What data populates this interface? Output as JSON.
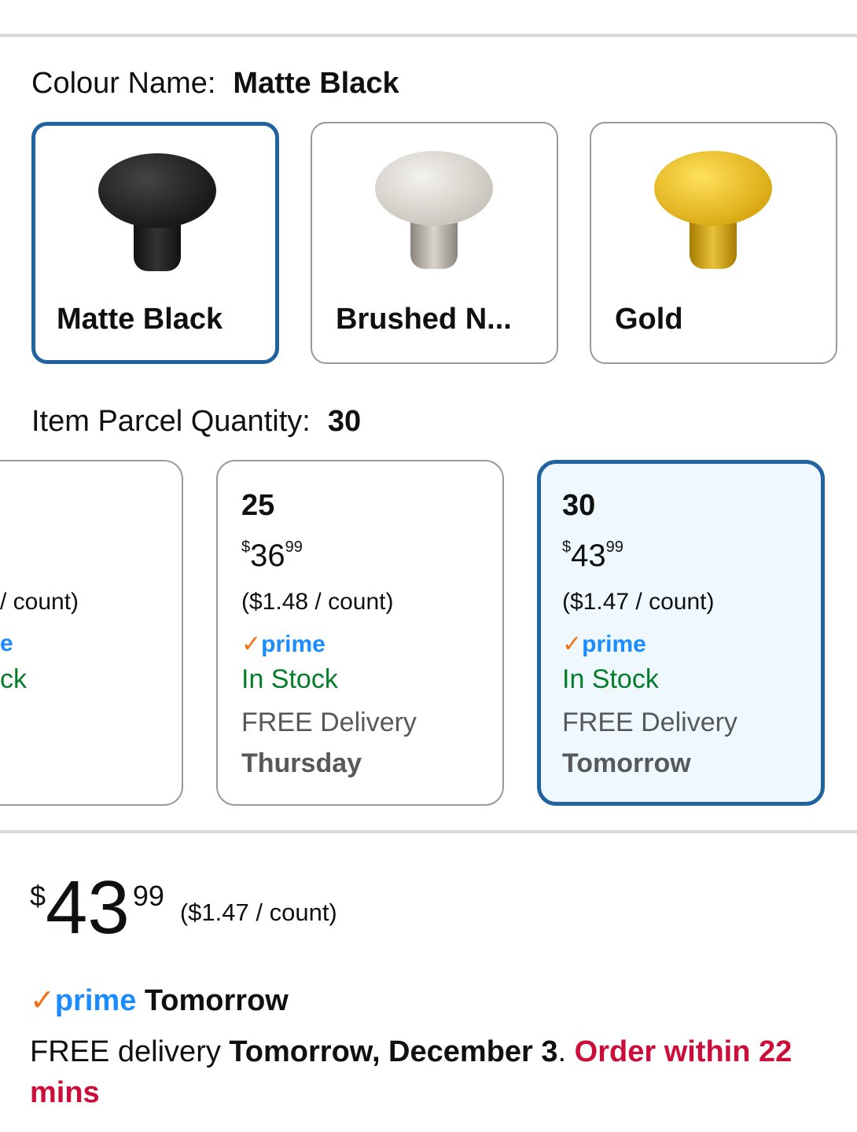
{
  "colour": {
    "label": "Colour Name:",
    "selected": "Matte Black",
    "options": [
      {
        "name": "Matte Black",
        "selected": true
      },
      {
        "name": "Brushed N...",
        "selected": false
      },
      {
        "name": "Gold",
        "selected": false
      }
    ]
  },
  "quantity": {
    "label": "Item Parcel Quantity:",
    "selected": "30",
    "partial": {
      "per_count": "/ count)",
      "prime": "e",
      "stock": "ck"
    },
    "options": [
      {
        "qty": "25",
        "currency": "$",
        "whole": "36",
        "fraction": "99",
        "per_count": "($1.48 / count)",
        "prime": "prime",
        "stock": "In Stock",
        "delivery": "FREE Delivery",
        "day": "Thursday"
      },
      {
        "qty": "30",
        "currency": "$",
        "whole": "43",
        "fraction": "99",
        "per_count": "($1.47 / count)",
        "prime": "prime",
        "stock": "In Stock",
        "delivery": "FREE Delivery",
        "day": "Tomorrow"
      }
    ]
  },
  "buybox": {
    "currency": "$",
    "whole": "43",
    "fraction": "99",
    "per_count": "($1.47 / count)",
    "prime": "prime",
    "prime_day": "Tomorrow",
    "delivery_prefix": "FREE delivery",
    "delivery_date": "Tomorrow, December 3",
    "order_within": "Order within",
    "countdown": "22 mins"
  },
  "colors": {
    "accent": "#2162a1",
    "prime_blue": "#1a8cff",
    "check_orange": "#f47216",
    "in_stock": "#067d29",
    "urgent": "#cc0c39"
  }
}
